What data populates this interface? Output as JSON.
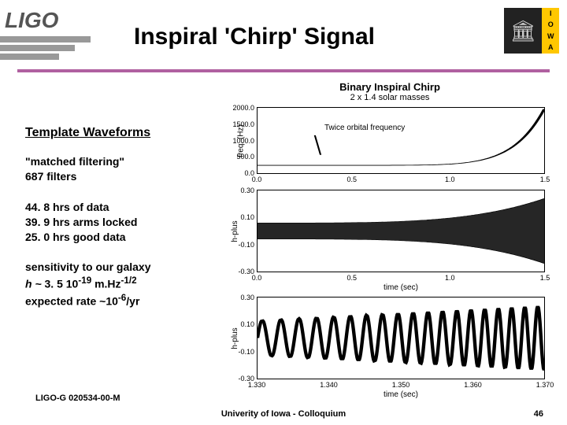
{
  "header": {
    "logo_text": "LIGO",
    "iowa_letters": [
      "I",
      "O",
      "W",
      "A"
    ],
    "title": "Inspiral 'Chirp' Signal",
    "ruler_color": "#b060a0"
  },
  "sidebar": {
    "heading": "Template Waveforms",
    "block1_line1": "\"matched filtering\"",
    "block1_line2": "687 filters",
    "block2_line1": "44. 8 hrs of data",
    "block2_line2": "39. 9 hrs arms locked",
    "block2_line3": "25. 0 hrs good data",
    "block3_line1": "sensitivity to our galaxy",
    "block3_line2a": "h ~ ",
    "block3_line2b": "3. 5 10",
    "block3_exp1": "-19",
    "block3_line2c": " m.Hz",
    "block3_exp2": "-1/2",
    "block3_line3a": "expected rate ~10",
    "block3_exp3": "-6",
    "block3_line3b": "/yr"
  },
  "figure": {
    "title": "Binary Inspiral Chirp",
    "subtitle": "2 x 1.4 solar masses",
    "panel1": {
      "ylabel": "freq. (Hz)",
      "annotation": "Twice orbital frequency",
      "yticks": [
        {
          "v": "2000.0",
          "pos": 0
        },
        {
          "v": "1500.0",
          "pos": 25
        },
        {
          "v": "1000.0",
          "pos": 50
        },
        {
          "v": "500.0",
          "pos": 75
        },
        {
          "v": "0.0",
          "pos": 100
        }
      ],
      "xticks": [
        {
          "v": "0.0",
          "pos": 0
        },
        {
          "v": "0.5",
          "pos": 33
        },
        {
          "v": "1.0",
          "pos": 67
        },
        {
          "v": "1.5",
          "pos": 100
        }
      ],
      "curve_color": "#000000"
    },
    "panel2": {
      "ylabel": "h-plus",
      "yticks": [
        {
          "v": "0.30",
          "pos": 0
        },
        {
          "v": "0.10",
          "pos": 33
        },
        {
          "v": "-0.10",
          "pos": 67
        },
        {
          "v": "-0.30",
          "pos": 100
        }
      ],
      "xticks": [
        {
          "v": "0.0",
          "pos": 0
        },
        {
          "v": "0.5",
          "pos": 33
        },
        {
          "v": "1.0",
          "pos": 67
        },
        {
          "v": "1.5",
          "pos": 100
        }
      ],
      "xlabel": "time (sec)"
    },
    "panel3": {
      "ylabel": "h-plus",
      "yticks": [
        {
          "v": "0.30",
          "pos": 0
        },
        {
          "v": "0.10",
          "pos": 33
        },
        {
          "v": "-0.10",
          "pos": 67
        },
        {
          "v": "-0.30",
          "pos": 100
        }
      ],
      "xticks": [
        {
          "v": "1.330",
          "pos": 0
        },
        {
          "v": "1.340",
          "pos": 25
        },
        {
          "v": "1.350",
          "pos": 50
        },
        {
          "v": "1.360",
          "pos": 75
        },
        {
          "v": "1.370",
          "pos": 100
        }
      ],
      "xlabel": "time (sec)",
      "freq_hz": 380
    }
  },
  "footer": {
    "docid": "LIGO-G 020534-00-M",
    "center": "Univerity of Iowa - Colloquium",
    "page": "46"
  }
}
